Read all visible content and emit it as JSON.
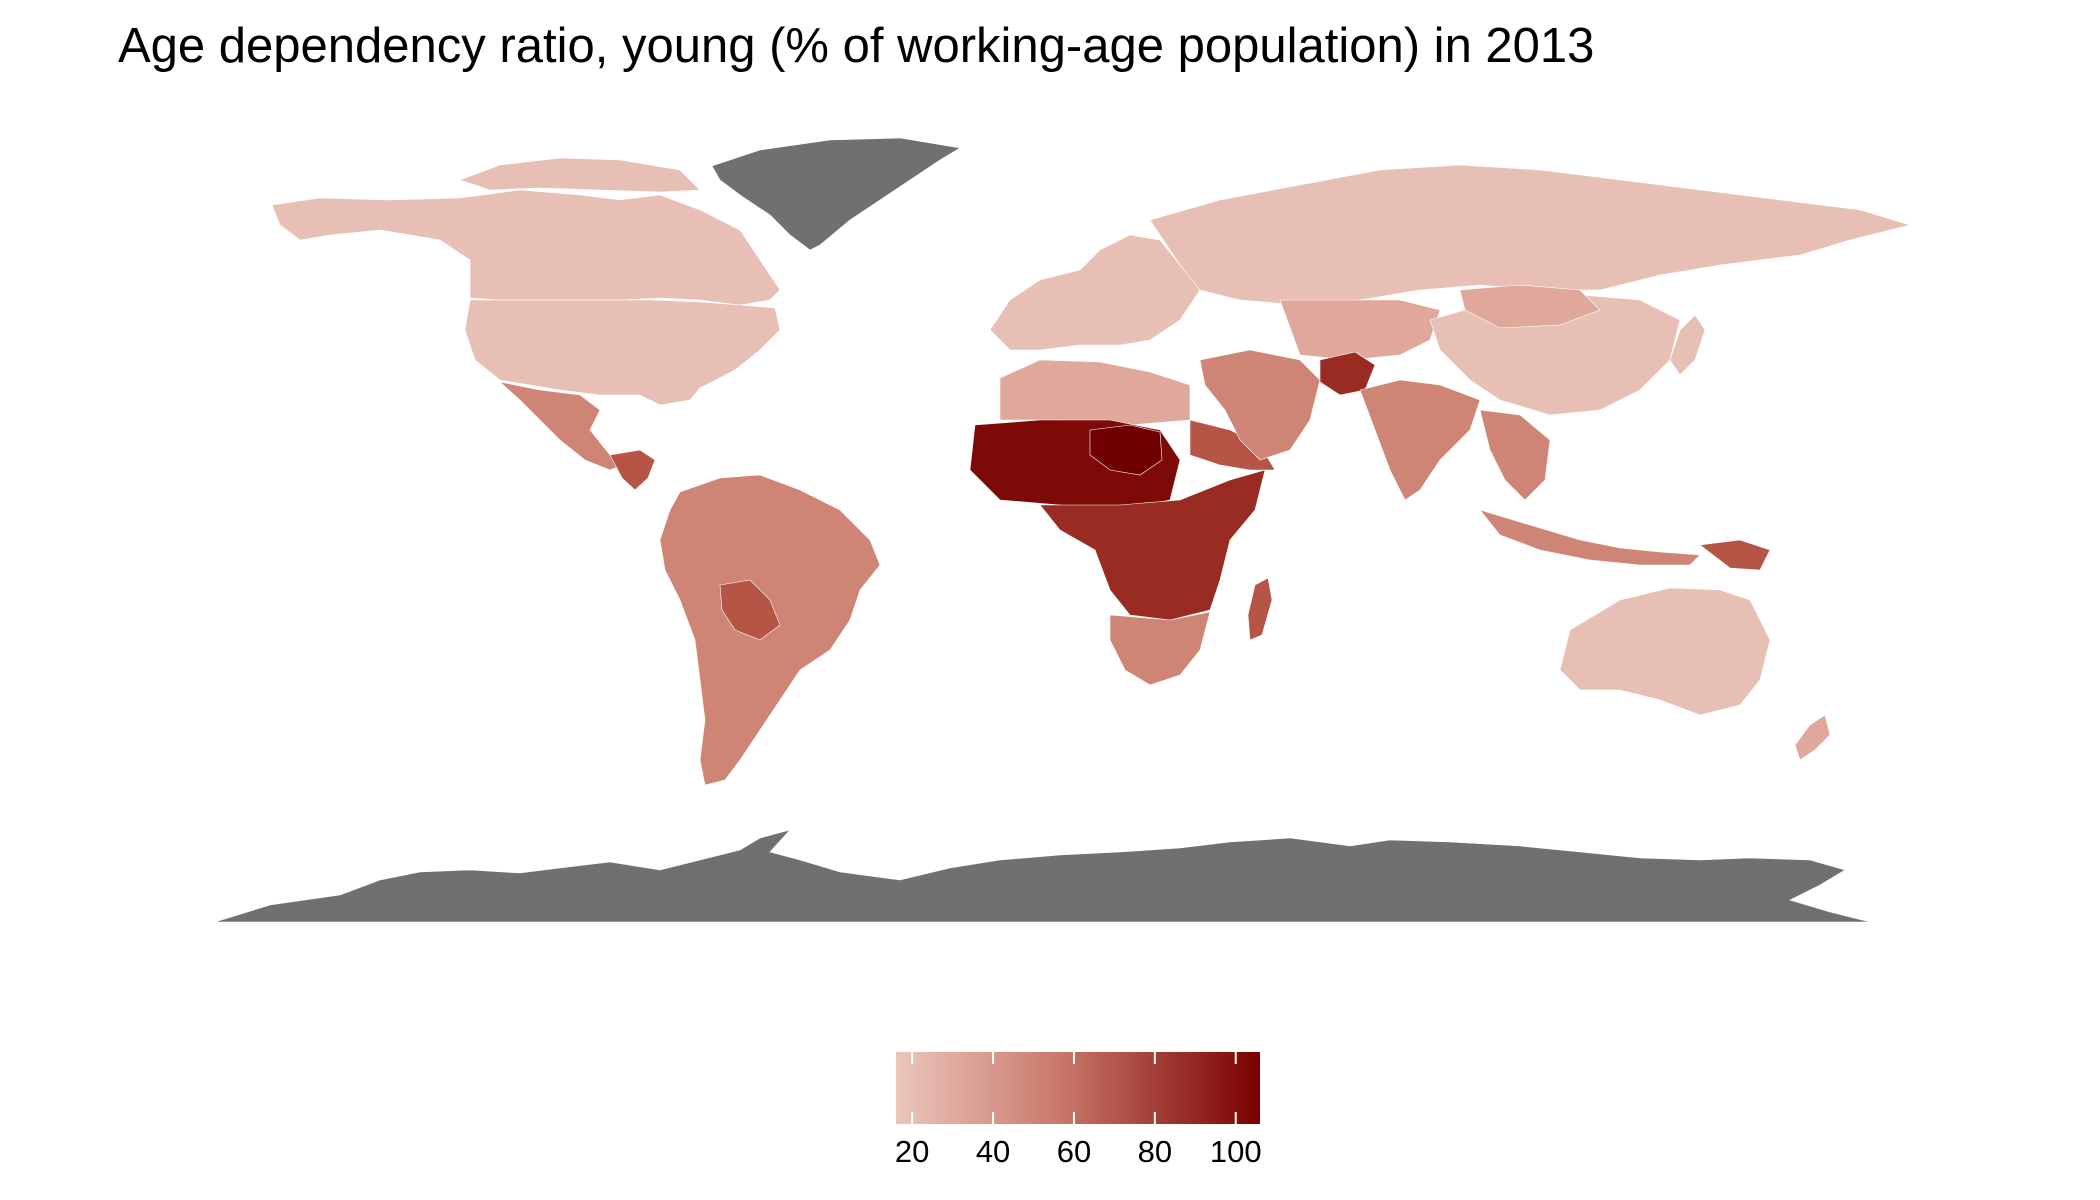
{
  "title": "Age dependency ratio, young (% of working-age population) in 2013",
  "legend": {
    "ticks": [
      "20",
      "40",
      "60",
      "80",
      "100"
    ],
    "tick_values": [
      20,
      40,
      60,
      80,
      100
    ],
    "range": [
      16,
      106
    ],
    "colors": {
      "low": "#ebc6bc",
      "mid": "#c9786a",
      "high": "#7a0000"
    }
  },
  "colors": {
    "no_data": "#707070",
    "low": "#e8bfb4",
    "light": "#dfa89b",
    "mid": "#cf8576",
    "midhigh": "#b65446",
    "high": "#9a2b22",
    "vhigh": "#7d0a06",
    "max": "#700000"
  }
}
